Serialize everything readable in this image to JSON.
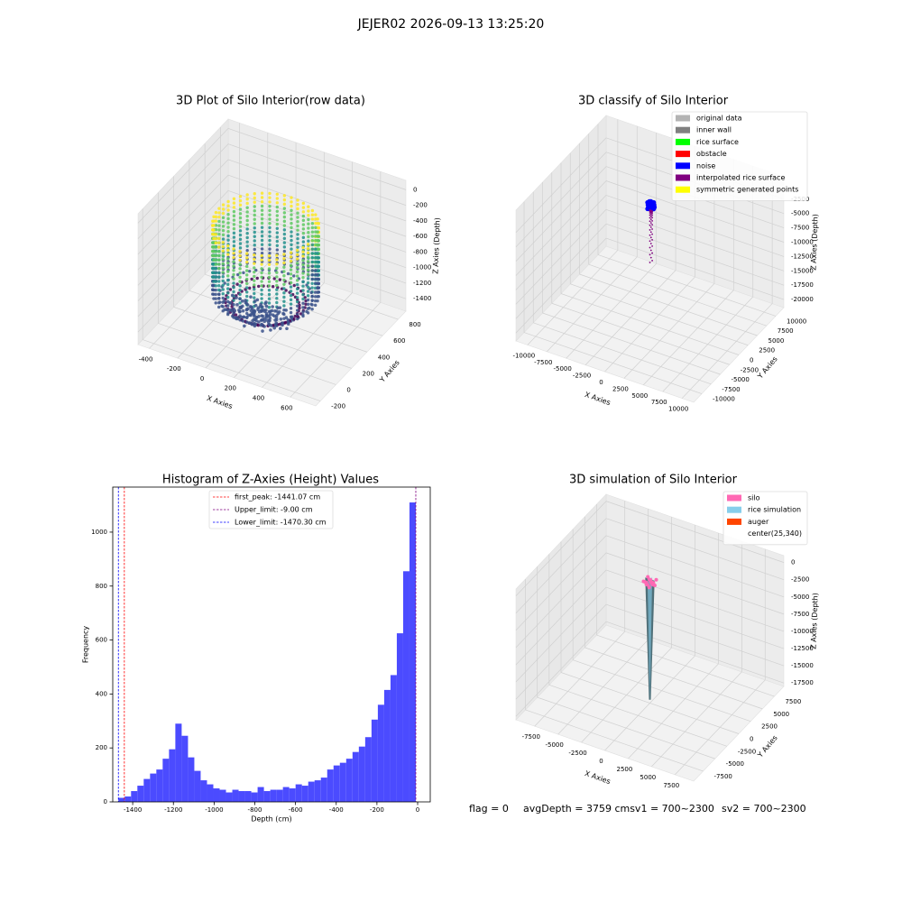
{
  "title": "JEJER02 2026-09-13 13:25:20",
  "footer": [
    "flag = 0",
    "avgDepth = 3759 cmsv1 = 700~2300",
    "sv2 = 700~2300"
  ],
  "chart_data": [
    {
      "type": "scatter3d",
      "title": "3D Plot of Silo Interior(row data)",
      "xlabel": "X Axies",
      "ylabel": "Y Axies",
      "zlabel": "Z Axies (Depth)",
      "xlim": [
        -480,
        780
      ],
      "ylim": [
        -260,
        900
      ],
      "zlim": [
        -1560,
        120
      ],
      "xticks": [
        -400,
        -200,
        0,
        200,
        400,
        600
      ],
      "yticks": [
        -200,
        0,
        200,
        400,
        600,
        800
      ],
      "zticks": [
        -1400,
        -1200,
        -1000,
        -800,
        -600,
        -400,
        -200,
        0
      ]
    },
    {
      "type": "scatter3d",
      "title": "3D classify of Silo Interior",
      "xlabel": "X Axies",
      "ylabel": "Y Axies",
      "zlabel": "Z Axies (Depth)",
      "xlim": [
        -11500,
        11500
      ],
      "ylim": [
        -12200,
        12200
      ],
      "zlim": [
        -21400,
        1400
      ],
      "xticks": [
        -10000,
        -7500,
        -5000,
        -2500,
        0,
        2500,
        5000,
        7500,
        10000
      ],
      "yticks": [
        -10000,
        -7500,
        -5000,
        -2500,
        0,
        2500,
        5000,
        7500,
        10000
      ],
      "zticks": [
        -20000,
        -17500,
        -15000,
        -12500,
        -10000,
        -7500,
        -5000,
        -2500
      ],
      "legend": [
        {
          "name": "original data",
          "color": "#b3b3b3"
        },
        {
          "name": "inner wall",
          "color": "#808080"
        },
        {
          "name": "rice surface",
          "color": "#00ff00"
        },
        {
          "name": "obstacle",
          "color": "#ff0000"
        },
        {
          "name": "noise",
          "color": "#0000ff"
        },
        {
          "name": "interpolated rice surface",
          "color": "#800080"
        },
        {
          "name": "symmetric generated points",
          "color": "#ffff00"
        }
      ]
    },
    {
      "type": "histogram",
      "title": "Histogram of Z-Axies (Height) Values",
      "xlabel": "Depth (cm)",
      "ylabel": "Frequency",
      "color": "#4b4bff",
      "xlim": [
        -1498,
        62
      ],
      "ylim": [
        0,
        1167
      ],
      "xticks": [
        -1400,
        -1200,
        -1000,
        -800,
        -600,
        -400,
        -200,
        0
      ],
      "yticks": [
        0,
        200,
        400,
        600,
        800,
        1000
      ],
      "bins": [
        -1470.3,
        -1439.2,
        -1408.1,
        -1377.0,
        -1345.9,
        -1314.8,
        -1283.8,
        -1252.7,
        -1221.6,
        -1190.5,
        -1159.4,
        -1128.3,
        -1097.2,
        -1066.1,
        -1035.0,
        -1003.9,
        -972.8,
        -941.7,
        -910.6,
        -879.6,
        -848.5,
        -817.4,
        -786.3,
        -755.2,
        -724.1,
        -693.0,
        -661.9,
        -630.8,
        -599.7,
        -568.6,
        -537.5,
        -506.5,
        -475.4,
        -444.3,
        -413.2,
        -382.1,
        -351.0,
        -319.9,
        -288.8,
        -257.7,
        -226.6,
        -195.5,
        -164.4,
        -133.3,
        -102.3,
        -71.2,
        -40.1,
        -9.0
      ],
      "counts": [
        15,
        20,
        40,
        60,
        85,
        105,
        120,
        160,
        195,
        290,
        245,
        165,
        115,
        80,
        65,
        50,
        45,
        35,
        45,
        40,
        40,
        35,
        55,
        40,
        45,
        45,
        55,
        50,
        65,
        60,
        75,
        80,
        90,
        120,
        135,
        145,
        160,
        185,
        205,
        240,
        305,
        360,
        415,
        470,
        625,
        855,
        1110
      ],
      "vlines": [
        {
          "label": "first_peak: -1441.07 cm",
          "value": -1441.07,
          "color": "#ff0000"
        },
        {
          "label": "Upper_limit: -9.00 cm",
          "value": -9.0,
          "color": "#800080"
        },
        {
          "label": "Lower_limit: -1470.30 cm",
          "value": -1470.3,
          "color": "#0000ff"
        }
      ]
    },
    {
      "type": "surface3d",
      "title": "3D simulation of Silo Interior",
      "xlabel": "X Axies",
      "ylabel": "Y Axies",
      "zlabel": "Z Axies (Depth)",
      "xlim": [
        -9500,
        9500
      ],
      "ylim": [
        -9500,
        9500
      ],
      "zlim": [
        -18000,
        1000
      ],
      "xticks": [
        -7500,
        -5000,
        -2500,
        0,
        2500,
        5000,
        7500
      ],
      "yticks": [
        -7500,
        -5000,
        -2500,
        0,
        2500,
        5000,
        7500
      ],
      "zticks": [
        -17500,
        -15000,
        -12500,
        -10000,
        -7500,
        -5000,
        -2500,
        0
      ],
      "legend": [
        {
          "name": "silo",
          "color": "#ff69b4"
        },
        {
          "name": "rice simulation",
          "color": "#87ceeb"
        },
        {
          "name": "auger",
          "color": "#ff4500"
        },
        {
          "name": "center(25,340)"
        }
      ]
    }
  ]
}
